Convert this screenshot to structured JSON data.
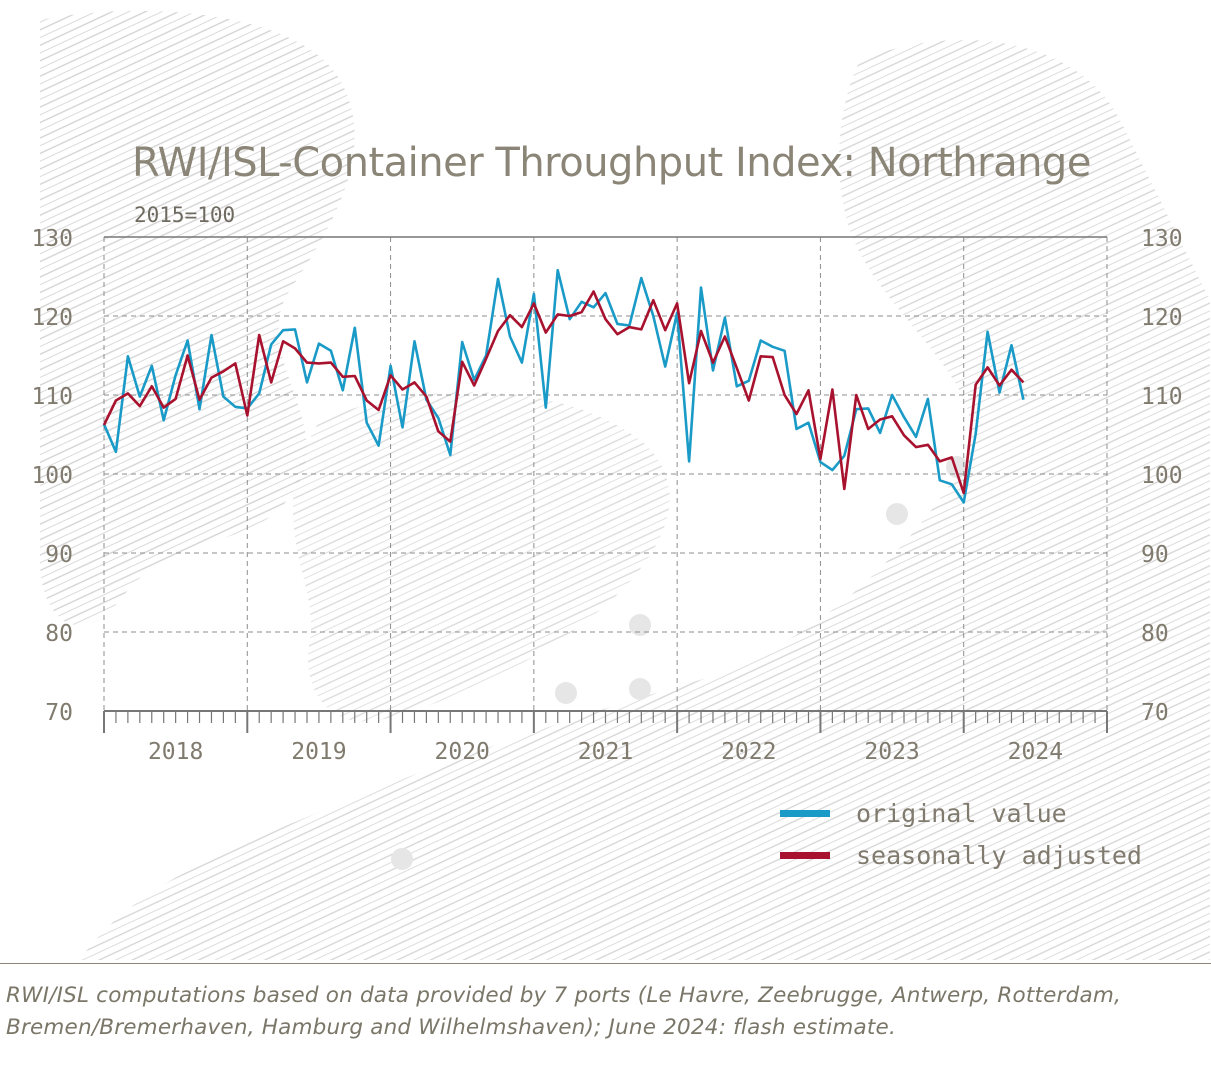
{
  "chart_data": {
    "type": "line",
    "title": "RWI/ISL-Container Throughput Index: Northrange",
    "subtitle": "2015=100",
    "ylim": [
      70,
      130
    ],
    "y_ticks": [
      70,
      80,
      90,
      100,
      110,
      120,
      130
    ],
    "x_year_labels": [
      "2018",
      "2019",
      "2020",
      "2021",
      "2022",
      "2023",
      "2024"
    ],
    "grid": true,
    "legend_position": "bottom-right",
    "x_start": "2018-01",
    "series": [
      {
        "name": "original value",
        "color": "#1a9bc7",
        "values": [
          106.3,
          102.8,
          114.9,
          109.8,
          113.7,
          106.8,
          112.5,
          116.9,
          108.2,
          117.6,
          109.8,
          108.5,
          108.3,
          110.2,
          116.4,
          118.2,
          118.3,
          111.6,
          116.5,
          115.6,
          110.6,
          118.5,
          106.5,
          103.6,
          113.7,
          105.9,
          116.8,
          109.4,
          107.1,
          102.4,
          116.7,
          111.9,
          115.0,
          124.7,
          117.4,
          114.1,
          122.8,
          108.4,
          125.8,
          119.6,
          121.8,
          121.1,
          122.9,
          119.0,
          118.8,
          124.8,
          120.0,
          113.6,
          120.4,
          101.6,
          123.6,
          113.1,
          119.8,
          111.1,
          111.8,
          116.9,
          116.1,
          115.6,
          105.7,
          106.5,
          101.5,
          100.5,
          102.3,
          108.2,
          108.3,
          105.2,
          110.0,
          107.2,
          104.7,
          109.5,
          99.2,
          98.7,
          96.4,
          105.1,
          118.0,
          110.3,
          116.3,
          109.4
        ]
      },
      {
        "name": "seasonally adjusted",
        "color": "#a8122e",
        "values": [
          106.2,
          109.3,
          110.2,
          108.6,
          111.1,
          108.4,
          109.5,
          115.0,
          109.4,
          112.2,
          113.0,
          114.0,
          107.4,
          117.6,
          111.6,
          116.8,
          115.9,
          114.1,
          114.0,
          114.1,
          112.3,
          112.4,
          109.3,
          108.1,
          112.5,
          110.7,
          111.6,
          109.8,
          105.4,
          104.1,
          114.2,
          111.2,
          114.6,
          118.1,
          120.1,
          118.6,
          121.6,
          117.9,
          120.2,
          120.0,
          120.5,
          123.1,
          119.6,
          117.7,
          118.6,
          118.3,
          122.0,
          118.2,
          121.6,
          111.5,
          118.1,
          114.1,
          117.4,
          113.4,
          109.3,
          114.9,
          114.8,
          110.0,
          107.6,
          110.6,
          101.9,
          110.7,
          98.1,
          110.0,
          105.7,
          106.9,
          107.3,
          104.9,
          103.4,
          103.7,
          101.6,
          102.1,
          97.6,
          111.3,
          113.5,
          111.2,
          113.2,
          111.6
        ]
      }
    ]
  },
  "legend": [
    {
      "label": "original value",
      "color": "#1a9bc7"
    },
    {
      "label": "seasonally adjusted",
      "color": "#a8122e"
    }
  ],
  "footnote": "RWI/ISL computations based on data provided by 7 ports (Le Havre, Zeebrugge, Antwerp, Rotterdam, Bremen/Bremerhaven, Hamburg and Wilhelmshaven); June 2024: flash estimate."
}
